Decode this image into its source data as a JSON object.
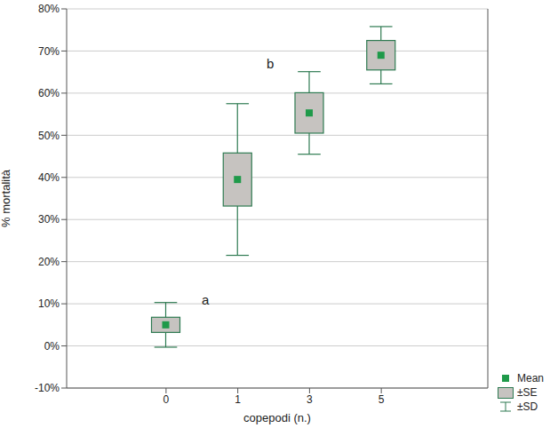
{
  "chart_data": {
    "type": "box",
    "x_label": "copepodi (n.)",
    "y_label": "% mortalità",
    "categories": [
      "0",
      "1",
      "3",
      "5"
    ],
    "series": [
      {
        "name": "Mean",
        "color": "#1f9a4a",
        "values": [
          5,
          39.5,
          55.3,
          69
        ]
      },
      {
        "name": "±SE",
        "color": "#c6c3c0",
        "values": [
          1.8,
          6.3,
          4.8,
          3.5
        ]
      },
      {
        "name": "±SD",
        "color": "#2f7b52",
        "values": [
          5.3,
          18,
          9.8,
          6.8
        ]
      }
    ],
    "ylim": [
      -10,
      80
    ],
    "yticks": [
      {
        "value": -10,
        "label": "-10%"
      },
      {
        "value": 0,
        "label": "0%"
      },
      {
        "value": 10,
        "label": "10%"
      },
      {
        "value": 20,
        "label": "20%"
      },
      {
        "value": 30,
        "label": "30%"
      },
      {
        "value": 40,
        "label": "40%"
      },
      {
        "value": 50,
        "label": "50%"
      },
      {
        "value": 60,
        "label": "60%"
      },
      {
        "value": 70,
        "label": "70%"
      },
      {
        "value": 80,
        "label": "80%"
      }
    ],
    "grid": true,
    "legend": "lower right",
    "annotations": [
      {
        "text": "a",
        "category": "0",
        "y": 11
      },
      {
        "text": "b",
        "category": "3",
        "y": 67
      }
    ]
  }
}
